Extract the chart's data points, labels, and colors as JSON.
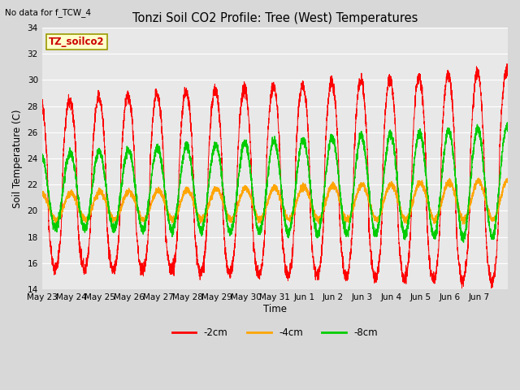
{
  "title": "Tonzi Soil CO2 Profile: Tree (West) Temperatures",
  "subtitle": "No data for f_TCW_4",
  "ylabel": "Soil Temperature (C)",
  "xlabel": "Time",
  "ylim": [
    14,
    34
  ],
  "yticks": [
    14,
    16,
    18,
    20,
    22,
    24,
    26,
    28,
    30,
    32,
    34
  ],
  "xtick_labels": [
    "May 23",
    "May 24",
    "May 25",
    "May 26",
    "May 27",
    "May 28",
    "May 29",
    "May 30",
    "May 31",
    "Jun 1",
    "Jun 2",
    "Jun 3",
    "Jun 4",
    "Jun 5",
    "Jun 6",
    "Jun 7"
  ],
  "legend_labels": [
    "-2cm",
    "-4cm",
    "-8cm"
  ],
  "line_colors": [
    "#ff0000",
    "#ffa500",
    "#00cc00"
  ],
  "bg_color": "#e8e8e8",
  "annotation_box": "TZ_soilco2",
  "annotation_box_color": "#ffffcc",
  "annotation_box_edge": "#999900",
  "num_days": 16,
  "n_points_per_day": 288
}
